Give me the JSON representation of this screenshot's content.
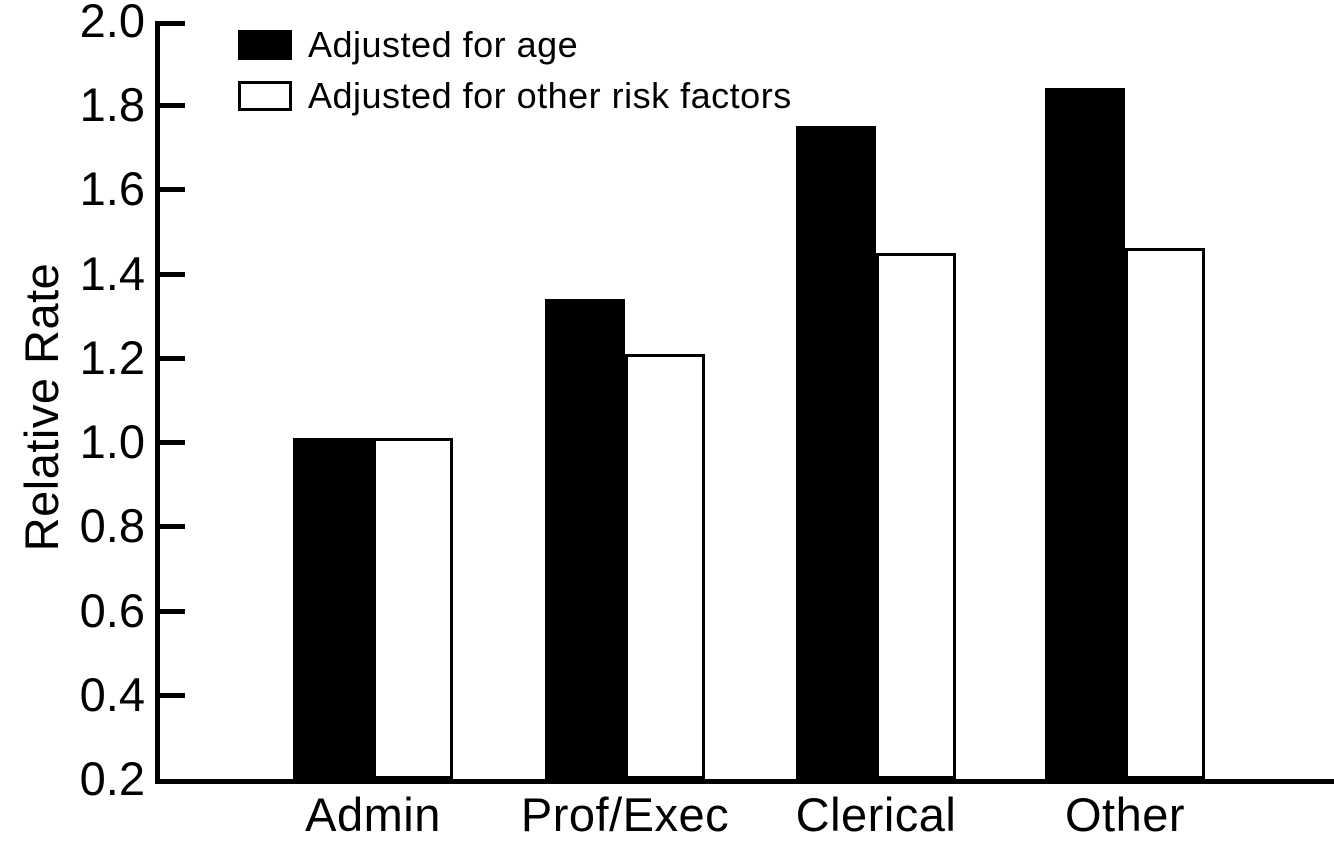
{
  "chart_data": {
    "type": "bar",
    "ylabel": "Relative Rate",
    "categories": [
      "Admin",
      "Prof/Exec",
      "Clerical",
      "Other"
    ],
    "series": [
      {
        "name": "Adjusted for age",
        "style": "filled",
        "values": [
          1.01,
          1.34,
          1.75,
          1.84
        ]
      },
      {
        "name": "Adjusted for other risk factors",
        "style": "outlined",
        "values": [
          1.01,
          1.21,
          1.45,
          1.46
        ]
      }
    ],
    "ylim": [
      0.2,
      2.0
    ],
    "y_ticks": [
      "2.0",
      "1.8",
      "1.6",
      "1.4",
      "1.2",
      "1.0",
      "0.8",
      "0.6",
      "0.4",
      "0.2"
    ],
    "grid": false,
    "legend_position": "top-left",
    "colors": {
      "foreground": "#000000",
      "background": "#ffffff"
    }
  }
}
